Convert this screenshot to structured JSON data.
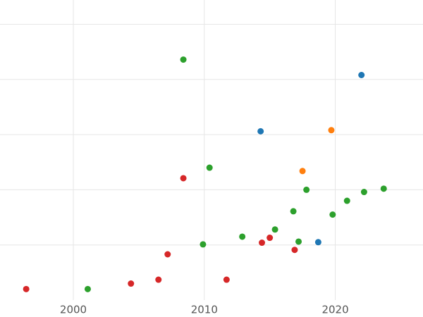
{
  "chart_data": {
    "type": "scatter",
    "xlim": [
      1994.4,
      2026.7
    ],
    "xticks": [
      2000,
      2010,
      2020
    ],
    "ylim": [
      0,
      5.44
    ],
    "yticks": [
      1,
      2,
      3,
      4,
      5
    ],
    "grid": true,
    "series": [
      {
        "color": "#d62728",
        "x": [
          1996.4,
          2004.4,
          2006.5,
          2007.2,
          2008.4,
          2011.7,
          2014.4,
          2015.0,
          2016.9
        ],
        "values": [
          0.2,
          0.3,
          0.37,
          0.83,
          2.21,
          0.37,
          1.04,
          1.13,
          0.91
        ]
      },
      {
        "color": "#2ca02c",
        "x": [
          2001.1,
          2008.4,
          2009.9,
          2010.4,
          2012.9,
          2015.4,
          2016.8,
          2017.2,
          2017.8,
          2019.8,
          2020.9,
          2022.2,
          2023.7
        ],
        "values": [
          0.2,
          4.36,
          1.01,
          2.4,
          1.15,
          1.28,
          1.61,
          1.06,
          2.0,
          1.55,
          1.8,
          1.96,
          2.02
        ]
      },
      {
        "color": "#1f77b4",
        "x": [
          2014.3,
          2022.0,
          2018.7
        ],
        "values": [
          3.06,
          4.08,
          1.05
        ]
      },
      {
        "color": "#ff7f0e",
        "x": [
          2017.5,
          2019.7
        ],
        "values": [
          2.34,
          3.08
        ]
      }
    ]
  }
}
